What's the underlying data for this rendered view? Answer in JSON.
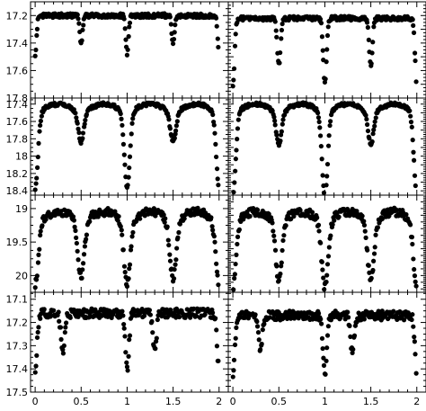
{
  "chart_data": [
    {
      "id": "r1c1",
      "type": "scatter",
      "ylim": [
        17.8,
        17.1
      ],
      "yticks": [
        17.2,
        17.4,
        17.6,
        17.8
      ],
      "yticklabels": [
        "17.2",
        "17.4",
        "17.6",
        "17.8"
      ],
      "xlim": [
        -0.05,
        2.1
      ],
      "pattern": {
        "base": 17.2,
        "noise": 0.015,
        "primary_depth": 0.28,
        "secondary_depth": 0.21,
        "width": 0.015
      }
    },
    {
      "id": "r1c2",
      "type": "scatter",
      "ylim": [
        17.8,
        17.1
      ],
      "yticks": [],
      "yticklabels": [],
      "xlim": [
        -0.05,
        2.1
      ],
      "pattern": {
        "base": 17.22,
        "noise": 0.015,
        "primary_depth": 0.48,
        "secondary_depth": 0.34,
        "width": 0.018
      }
    },
    {
      "id": "r2c1",
      "type": "scatter",
      "ylim": [
        18.45,
        17.33
      ],
      "yticks": [
        17.4,
        17.6,
        17.8,
        18.0,
        18.2,
        18.4
      ],
      "yticklabels": [
        "17.4",
        "17.6",
        "17.8",
        "18",
        "18.2",
        "18.4"
      ],
      "xlim": [
        -0.05,
        2.1
      ],
      "pattern": {
        "base": 17.4,
        "noise": 0.02,
        "primary_depth": 0.85,
        "secondary_depth": 0.32,
        "curve": 0.2,
        "width": 0.03
      }
    },
    {
      "id": "r2c2",
      "type": "scatter",
      "ylim": [
        18.45,
        17.33
      ],
      "yticks": [],
      "yticklabels": [],
      "xlim": [
        -0.05,
        2.1
      ],
      "pattern": {
        "base": 17.4,
        "noise": 0.02,
        "primary_depth": 0.95,
        "secondary_depth": 0.35,
        "curve": 0.2,
        "width": 0.03
      }
    },
    {
      "id": "r3c1",
      "type": "scatter",
      "ylim": [
        20.25,
        18.8
      ],
      "yticks": [
        19.0,
        19.5,
        20.0
      ],
      "yticklabels": [
        "19",
        "19.5",
        "20"
      ],
      "xlim": [
        -0.05,
        2.1
      ],
      "pattern": {
        "base": 19.05,
        "noise": 0.06,
        "primary_depth": 0.9,
        "secondary_depth": 0.8,
        "curve": 0.3,
        "width": 0.035
      }
    },
    {
      "id": "r3c2",
      "type": "scatter",
      "ylim": [
        20.25,
        18.8
      ],
      "yticks": [],
      "yticklabels": [],
      "xlim": [
        -0.05,
        2.1
      ],
      "pattern": {
        "base": 19.05,
        "noise": 0.06,
        "primary_depth": 0.95,
        "secondary_depth": 0.85,
        "curve": 0.3,
        "width": 0.035
      }
    },
    {
      "id": "r4c1",
      "type": "scatter",
      "ylim": [
        17.5,
        17.07
      ],
      "yticks": [
        17.1,
        17.2,
        17.3,
        17.4,
        17.5
      ],
      "yticklabels": [
        "17.1",
        "17.2",
        "17.3",
        "17.4",
        "17.5"
      ],
      "xlim": [
        -0.05,
        2.1
      ],
      "pattern": {
        "base": 17.16,
        "noise": 0.02,
        "primary_depth": 0.24,
        "secondary_depth": 0.16,
        "width": 0.02,
        "secondary_phase": 0.3
      }
    },
    {
      "id": "r4c2",
      "type": "scatter",
      "ylim": [
        17.5,
        17.07
      ],
      "yticks": [],
      "yticklabels": [],
      "xlim": [
        -0.05,
        2.1
      ],
      "pattern": {
        "base": 17.17,
        "noise": 0.02,
        "primary_depth": 0.25,
        "secondary_depth": 0.16,
        "width": 0.02,
        "secondary_phase": 0.3
      }
    }
  ],
  "x_axis": {
    "ticks": [
      0,
      0.5,
      1,
      1.5,
      2
    ],
    "ticklabels": [
      "0",
      "0.5",
      "1",
      "1.5",
      "2"
    ]
  }
}
